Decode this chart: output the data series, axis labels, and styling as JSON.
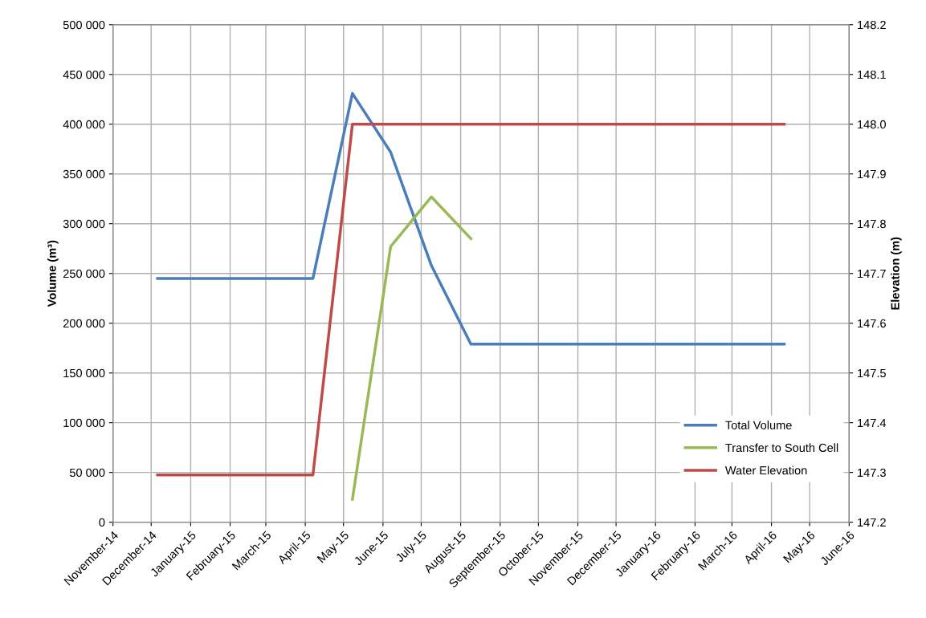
{
  "chart_data": {
    "type": "line",
    "ylabel": "Volume (m³)",
    "y2label": "Elevation (m)",
    "x": [
      "2014-12-06",
      "2015-04-07",
      "2015-05-08",
      "2015-06-07",
      "2015-07-09",
      "2015-08-09",
      "2016-04-11"
    ],
    "series": [
      {
        "name": "Total Volume",
        "color": "#4a7ebb",
        "values": [
          245000,
          245000,
          431000,
          372000,
          258000,
          179000,
          179000
        ]
      },
      {
        "name": "Transfer to South Cell",
        "color": "#98b954",
        "x": [
          "2015-05-08",
          "2015-06-07",
          "2015-07-09",
          "2015-08-09"
        ],
        "values": [
          23000,
          277000,
          327000,
          285000
        ]
      },
      {
        "name": "Water Elevation",
        "color": "#be4b48",
        "axis": "y2",
        "x": [
          "2014-12-06",
          "2015-04-07",
          "2015-05-08",
          "2016-04-11"
        ],
        "values": [
          147.295,
          147.295,
          148.0,
          148.0
        ]
      }
    ],
    "xlim": [
      "2014-11-01",
      "2016-06-01"
    ],
    "xticks": [
      {
        "value": "2014-11-01",
        "label": "November-14"
      },
      {
        "value": "2014-12-01",
        "label": "December-14"
      },
      {
        "value": "2015-01-01",
        "label": "January-15"
      },
      {
        "value": "2015-02-01",
        "label": "February-15"
      },
      {
        "value": "2015-03-01",
        "label": "March-15"
      },
      {
        "value": "2015-04-01",
        "label": "April-15"
      },
      {
        "value": "2015-05-01",
        "label": "May-15"
      },
      {
        "value": "2015-06-01",
        "label": "June-15"
      },
      {
        "value": "2015-07-01",
        "label": "July-15"
      },
      {
        "value": "2015-08-01",
        "label": "August-15"
      },
      {
        "value": "2015-09-01",
        "label": "September-15"
      },
      {
        "value": "2015-10-01",
        "label": "October-15"
      },
      {
        "value": "2015-11-01",
        "label": "November-15"
      },
      {
        "value": "2015-12-01",
        "label": "December-15"
      },
      {
        "value": "2016-01-01",
        "label": "January-16"
      },
      {
        "value": "2016-02-01",
        "label": "February-16"
      },
      {
        "value": "2016-03-01",
        "label": "March-16"
      },
      {
        "value": "2016-04-01",
        "label": "April-16"
      },
      {
        "value": "2016-05-01",
        "label": "May-16"
      },
      {
        "value": "2016-06-01",
        "label": "June-16"
      }
    ],
    "ylim": [
      0,
      500000
    ],
    "yticks": [
      0,
      {
        "value": 50000,
        "label": "50 000"
      },
      {
        "value": 100000,
        "label": "100 000"
      },
      {
        "value": 150000,
        "label": "150 000"
      },
      {
        "value": 200000,
        "label": "200 000"
      },
      {
        "value": 250000,
        "label": "250 000"
      },
      {
        "value": 300000,
        "label": "300 000"
      },
      {
        "value": 350000,
        "label": "350 000"
      },
      {
        "value": 400000,
        "label": "400 000"
      },
      {
        "value": 450000,
        "label": "450 000"
      },
      {
        "value": 500000,
        "label": "500 000"
      }
    ],
    "y2lim": [
      147.2,
      148.2
    ],
    "y2ticks": [
      147.2,
      147.3,
      147.4,
      147.5,
      147.6,
      147.7,
      147.8,
      147.9,
      {
        "value": 148,
        "label": "148.0"
      },
      148.1,
      148.2
    ],
    "grid": true,
    "legend": "bottom right",
    "marker": "none",
    "line_style": "solid"
  }
}
